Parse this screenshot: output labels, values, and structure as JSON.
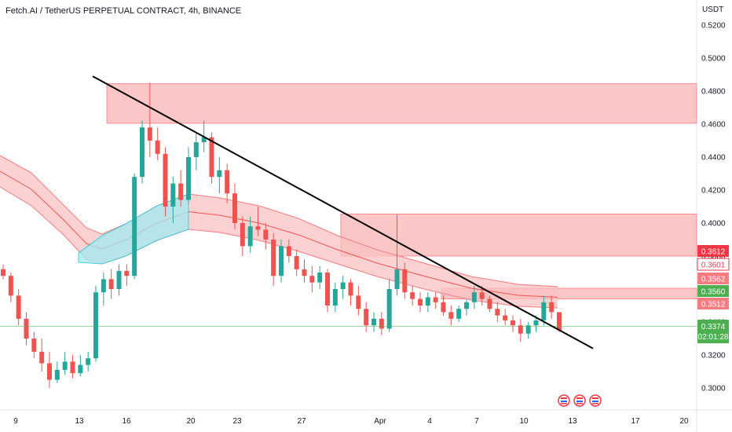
{
  "header": {
    "title": "Fetch.AI / TetherUS PERPETUAL CONTRACT, 4h, BINANCE"
  },
  "chart_data": {
    "type": "candlestick",
    "title": "Fetch.AI / TetherUS PERPETUAL CONTRACT, 4h, BINANCE",
    "y_unit": "USDT",
    "ylim": [
      0.29,
      0.52
    ],
    "y_ticks": [
      "0.5200",
      "0.5000",
      "0.4800",
      "0.4600",
      "0.4400",
      "0.4200",
      "0.4000",
      "0.3800",
      "0.3600",
      "0.3400",
      "0.3200",
      "0.3000"
    ],
    "x_ticks": [
      "9",
      "13",
      "16",
      "20",
      "23",
      "27",
      "Apr",
      "4",
      "7",
      "10",
      "13",
      "17",
      "20"
    ],
    "colors": {
      "up": "#26a69a",
      "down": "#ef5350",
      "trendline": "#000000",
      "zone_fill": "#f8aeae",
      "band_red": "#f9c1c1",
      "band_cyan": "#a6e8ef",
      "last_price": "#4caf50"
    },
    "price_tags": [
      {
        "label": "0.3612",
        "value": 0.3612,
        "color": "#f23645"
      },
      {
        "label": "0.3601",
        "value": 0.3601,
        "color": "#ffffff",
        "text_color": "#f23645"
      },
      {
        "label": "0.3562",
        "value": 0.3562,
        "color": "#f77c80"
      },
      {
        "label": "0.3560",
        "value": 0.356,
        "color": "#4caf50"
      },
      {
        "label": "0.3512",
        "value": 0.3512,
        "color": "#f77c80"
      }
    ],
    "last_price": {
      "value": 0.3374,
      "label": "0.3374",
      "countdown": "02:01:28"
    },
    "resistance_zones": [
      {
        "from": 0.4605,
        "to": 0.4845
      },
      {
        "from": 0.38,
        "to": 0.4055
      },
      {
        "from": 0.354,
        "to": 0.3605
      }
    ],
    "trendline": {
      "from": {
        "x": "Mar 13",
        "y": 0.489
      },
      "to": {
        "x": "Apr 12",
        "y": 0.324
      }
    },
    "candles_approx": [
      [
        0.372,
        0.375,
        0.366,
        0.368
      ],
      [
        0.368,
        0.37,
        0.352,
        0.356
      ],
      [
        0.356,
        0.36,
        0.338,
        0.342
      ],
      [
        0.342,
        0.346,
        0.326,
        0.33
      ],
      [
        0.33,
        0.334,
        0.318,
        0.322
      ],
      [
        0.322,
        0.33,
        0.31,
        0.315
      ],
      [
        0.315,
        0.322,
        0.3,
        0.305
      ],
      [
        0.305,
        0.316,
        0.303,
        0.311
      ],
      [
        0.311,
        0.322,
        0.308,
        0.316
      ],
      [
        0.316,
        0.32,
        0.306,
        0.309
      ],
      [
        0.309,
        0.32,
        0.307,
        0.314
      ],
      [
        0.314,
        0.322,
        0.31,
        0.318
      ],
      [
        0.318,
        0.362,
        0.316,
        0.358
      ],
      [
        0.358,
        0.37,
        0.35,
        0.366
      ],
      [
        0.366,
        0.372,
        0.354,
        0.36
      ],
      [
        0.36,
        0.375,
        0.356,
        0.371
      ],
      [
        0.371,
        0.375,
        0.362,
        0.368
      ],
      [
        0.368,
        0.43,
        0.366,
        0.428
      ],
      [
        0.428,
        0.462,
        0.424,
        0.458
      ],
      [
        0.458,
        0.485,
        0.44,
        0.45
      ],
      [
        0.45,
        0.458,
        0.438,
        0.442
      ],
      [
        0.442,
        0.446,
        0.404,
        0.41
      ],
      [
        0.41,
        0.428,
        0.4,
        0.424
      ],
      [
        0.424,
        0.432,
        0.41,
        0.414
      ],
      [
        0.414,
        0.446,
        0.412,
        0.44
      ],
      [
        0.44,
        0.455,
        0.432,
        0.449
      ],
      [
        0.449,
        0.462,
        0.443,
        0.452
      ],
      [
        0.452,
        0.455,
        0.424,
        0.428
      ],
      [
        0.428,
        0.44,
        0.418,
        0.432
      ],
      [
        0.432,
        0.436,
        0.412,
        0.418
      ],
      [
        0.418,
        0.424,
        0.396,
        0.4
      ],
      [
        0.4,
        0.404,
        0.38,
        0.386
      ],
      [
        0.386,
        0.404,
        0.382,
        0.398
      ],
      [
        0.398,
        0.41,
        0.392,
        0.396
      ],
      [
        0.396,
        0.4,
        0.384,
        0.39
      ],
      [
        0.39,
        0.394,
        0.362,
        0.368
      ],
      [
        0.368,
        0.39,
        0.364,
        0.386
      ],
      [
        0.386,
        0.39,
        0.376,
        0.38
      ],
      [
        0.38,
        0.384,
        0.368,
        0.372
      ],
      [
        0.372,
        0.378,
        0.364,
        0.368
      ],
      [
        0.368,
        0.374,
        0.358,
        0.364
      ],
      [
        0.364,
        0.374,
        0.36,
        0.37
      ],
      [
        0.37,
        0.372,
        0.346,
        0.35
      ],
      [
        0.35,
        0.364,
        0.346,
        0.36
      ],
      [
        0.36,
        0.368,
        0.354,
        0.364
      ],
      [
        0.364,
        0.366,
        0.35,
        0.356
      ],
      [
        0.356,
        0.362,
        0.344,
        0.348
      ],
      [
        0.348,
        0.352,
        0.334,
        0.338
      ],
      [
        0.338,
        0.346,
        0.334,
        0.342
      ],
      [
        0.342,
        0.346,
        0.332,
        0.336
      ],
      [
        0.336,
        0.366,
        0.334,
        0.36
      ],
      [
        0.36,
        0.405,
        0.356,
        0.372
      ],
      [
        0.372,
        0.376,
        0.354,
        0.358
      ],
      [
        0.358,
        0.362,
        0.35,
        0.354
      ],
      [
        0.354,
        0.358,
        0.346,
        0.35
      ],
      [
        0.35,
        0.358,
        0.346,
        0.355
      ],
      [
        0.355,
        0.358,
        0.348,
        0.352
      ],
      [
        0.352,
        0.356,
        0.344,
        0.346
      ],
      [
        0.346,
        0.35,
        0.338,
        0.342
      ],
      [
        0.342,
        0.35,
        0.34,
        0.348
      ],
      [
        0.348,
        0.354,
        0.344,
        0.352
      ],
      [
        0.352,
        0.362,
        0.348,
        0.358
      ],
      [
        0.358,
        0.362,
        0.35,
        0.354
      ],
      [
        0.354,
        0.356,
        0.346,
        0.348
      ],
      [
        0.348,
        0.352,
        0.34,
        0.344
      ],
      [
        0.344,
        0.348,
        0.338,
        0.341
      ],
      [
        0.341,
        0.344,
        0.334,
        0.338
      ],
      [
        0.338,
        0.342,
        0.328,
        0.333
      ],
      [
        0.333,
        0.34,
        0.33,
        0.338
      ],
      [
        0.338,
        0.344,
        0.334,
        0.341
      ],
      [
        0.341,
        0.356,
        0.338,
        0.352
      ],
      [
        0.352,
        0.356,
        0.342,
        0.346
      ],
      [
        0.346,
        0.34,
        0.334,
        0.335
      ]
    ]
  }
}
